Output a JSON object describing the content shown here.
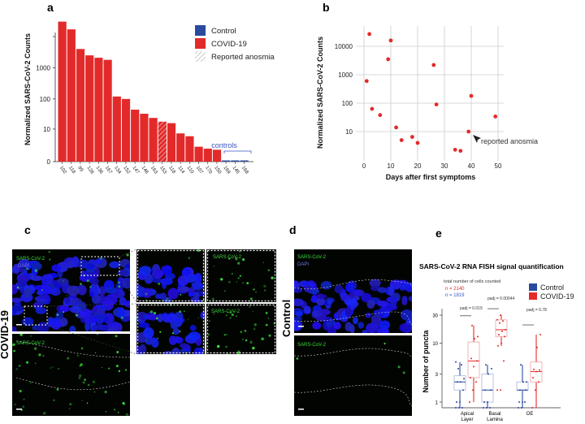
{
  "chart_data": [
    {
      "panel": "a",
      "type": "bar",
      "ylabel": "Normalized SARS-CoV-2 Counts",
      "yscale": "log",
      "yticks": [
        "0",
        "10",
        "100",
        "1000"
      ],
      "categories": [
        "102",
        "118",
        "99",
        "128",
        "136",
        "167",
        "134",
        "152",
        "147",
        "146",
        "163",
        "153",
        "118",
        "114",
        "110",
        "107",
        "170",
        "150",
        "169",
        "145",
        "168"
      ],
      "values": [
        30000,
        17000,
        4000,
        2500,
        2100,
        1800,
        120,
        100,
        45,
        33,
        24,
        18,
        16,
        7,
        5.5,
        2,
        1.6,
        1.4,
        0,
        0,
        0
      ],
      "groups": [
        "COVID-19",
        "COVID-19",
        "COVID-19",
        "COVID-19",
        "COVID-19",
        "COVID-19",
        "COVID-19",
        "COVID-19",
        "COVID-19",
        "COVID-19",
        "COVID-19",
        "COVID-19",
        "COVID-19",
        "COVID-19",
        "COVID-19",
        "COVID-19",
        "COVID-19",
        "COVID-19",
        "Control",
        "Control",
        "Control"
      ],
      "anosmia_index": 11,
      "legend": [
        {
          "label": "Control",
          "color": "#2a4a9e"
        },
        {
          "label": "COVID-19",
          "color": "#e32a2a"
        },
        {
          "label": "Reported anosmia",
          "pattern": "hatch"
        }
      ],
      "annotation": "controls"
    },
    {
      "panel": "b",
      "type": "scatter",
      "xlabel": "Days after first symptoms",
      "ylabel": "Normalized SARS-CoV-2 Counts",
      "yscale": "log",
      "xlim": [
        0,
        50
      ],
      "xticks": [
        "0",
        "10",
        "20",
        "30",
        "40",
        "50"
      ],
      "yticks": [
        "10",
        "100",
        "1000",
        "10000"
      ],
      "points": [
        [
          1,
          600
        ],
        [
          2,
          27000
        ],
        [
          3,
          63
        ],
        [
          6,
          38
        ],
        [
          9,
          3500
        ],
        [
          10,
          16000
        ],
        [
          12,
          14
        ],
        [
          14,
          5
        ],
        [
          18,
          6.5
        ],
        [
          20,
          4
        ],
        [
          26,
          2200
        ],
        [
          27,
          90
        ],
        [
          34,
          2.3
        ],
        [
          36,
          2.1
        ],
        [
          39,
          10
        ],
        [
          40,
          180
        ],
        [
          49,
          34
        ]
      ],
      "color": "#e32a2a",
      "annotation": "reported anosmia"
    },
    {
      "panel": "e",
      "type": "box",
      "title": "SARS-CoV-2 RNA FISH signal quantification",
      "ylabel": "Number of puncta",
      "yscale": "log",
      "yticks": [
        "1",
        "3",
        "10",
        "30"
      ],
      "categories": [
        "Apical Layer",
        "Basal Lamina",
        "OE"
      ],
      "category_lines": [
        [
          "Apical",
          "Layer"
        ],
        [
          "Basal",
          "Lamina"
        ],
        [
          "OE",
          ""
        ]
      ],
      "pvalues": [
        "padj = 0.019",
        "padj = 0.00044",
        "padj = 0.78"
      ],
      "note": "total number of cells counted",
      "n_covid": "n = 2140",
      "n_control": "n = 1819",
      "legend": [
        {
          "label": "Control",
          "color": "#2a4a9e"
        },
        {
          "label": "COVID-19",
          "color": "#e32a2a"
        }
      ],
      "series": [
        {
          "name": "Control",
          "color": "#2a4a9e",
          "boxes": [
            {
              "min": 0.8,
              "q1": 1.6,
              "median": 2.2,
              "q3": 2.8,
              "max": 4.8,
              "points": [
                0.8,
                0.8,
                0.8,
                1,
                1,
                1.6,
                2.2,
                2.2,
                2.5,
                3.7,
                4.3,
                4.8
              ]
            },
            {
              "min": 0.8,
              "q1": 1,
              "median": 1.6,
              "q3": 3,
              "max": 4.3,
              "points": [
                0.8,
                0.8,
                0.8,
                1,
                1,
                1.6,
                1.6,
                3,
                3.7,
                4.3
              ]
            },
            {
              "min": 0.8,
              "q1": 1.6,
              "median": 1.6,
              "q3": 2.2,
              "max": 4.3,
              "points": [
                0.8,
                0.8,
                1,
                1,
                1,
                1.6,
                1.6,
                2.2,
                2.2,
                4.3
              ]
            }
          ]
        },
        {
          "name": "COVID-19",
          "color": "#e32a2a",
          "boxes": [
            {
              "min": 1,
              "q1": 2.6,
              "median": 5,
              "q3": 10.5,
              "max": 20,
              "points": [
                1,
                1.6,
                2.2,
                2.6,
                4,
                5,
                5.5,
                12,
                13,
                20
              ]
            },
            {
              "min": 9,
              "q1": 13,
              "median": 17,
              "q3": 25,
              "max": 30,
              "points": [
                1.6,
                1.6,
                5,
                9,
                10,
                13,
                14,
                16,
                17,
                22,
                24,
                25,
                30
              ]
            },
            {
              "min": 0.8,
              "q1": 2.2,
              "median": 3.3,
              "q3": 4.8,
              "max": 14,
              "points": [
                0.8,
                1.6,
                2.2,
                2.6,
                3.3,
                3.5,
                3.6,
                8.5,
                14
              ]
            }
          ]
        }
      ]
    }
  ],
  "panels": {
    "a": "a",
    "b": "b",
    "c": "c",
    "d": "d",
    "e": "e"
  },
  "panel_c": {
    "row_label": "COVID-19",
    "channel_green": "SARS-CoV-2",
    "channel_blue": "DAPI"
  },
  "panel_d": {
    "row_label": "Control",
    "channel_green": "SARS-CoV-2",
    "channel_blue": "DAPI"
  }
}
